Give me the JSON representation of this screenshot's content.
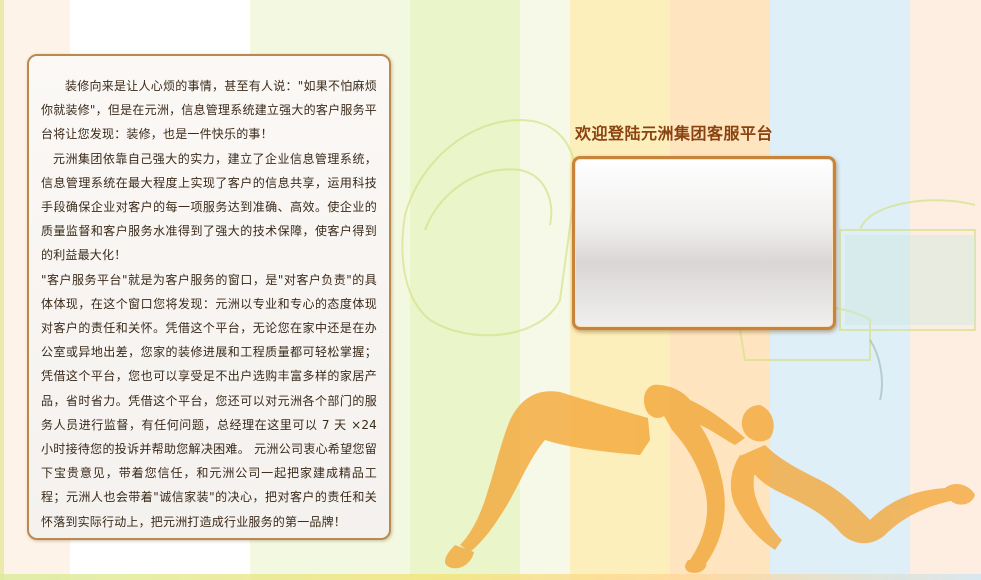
{
  "colors": {
    "panel_border": "#b98a4f",
    "title": "#8a4210",
    "login_border": "#c7843a",
    "stripe_green": "#e3f1b8",
    "stripe_yellow": "#fbeaa4",
    "stripe_orange": "#fddcaa",
    "stripe_blue": "#d6ebf6",
    "silhouette": "#f3a93c"
  },
  "intro": {
    "paragraphs": [
      "装修向来是让人心烦的事情，甚至有人说：\"如果不怕麻烦你就装修\"，但是在元洲，信息管理系统建立强大的客户服务平台将让您发现：装修，也是一件快乐的事！",
      "元洲集团依靠自己强大的实力，建立了企业信息管理系统，信息管理系统在最大程度上实现了客户的信息共享，运用科技手段确保企业对客户的每一项服务达到准确、高效。使企业的质量监督和客户服务水准得到了强大的技术保障，使客户得到的利益最大化！",
      "\"客户服务平台\"就是为客户服务的窗口，是\"对客户负责\"的具体体现，在这个窗口您将发现：元洲以专业和专心的态度体现对客户的责任和关怀。凭借这个平台，无论您在家中还是在办公室或异地出差，您家的装修进展和工程质量都可轻松掌握；凭借这个平台，您也可以享受足不出户选购丰富多样的家居产品，省时省力。凭借这个平台，您还可以对元洲各个部门的服务人员进行监督，有任何问题，总经理在这里可以 7 天 ×24 小时接待您的投诉并帮助您解决困难。 元洲公司衷心希望您留下宝贵意见，带着您信任，和元洲公司一起把家建成精品工程；元洲人也会带着\"诚信家装\"的决心，把对客户的责任和关怀落到实际行动上，把元洲打造成行业服务的第一品牌！"
    ]
  },
  "login": {
    "title": "欢迎登陆元洲集团客服平台"
  }
}
